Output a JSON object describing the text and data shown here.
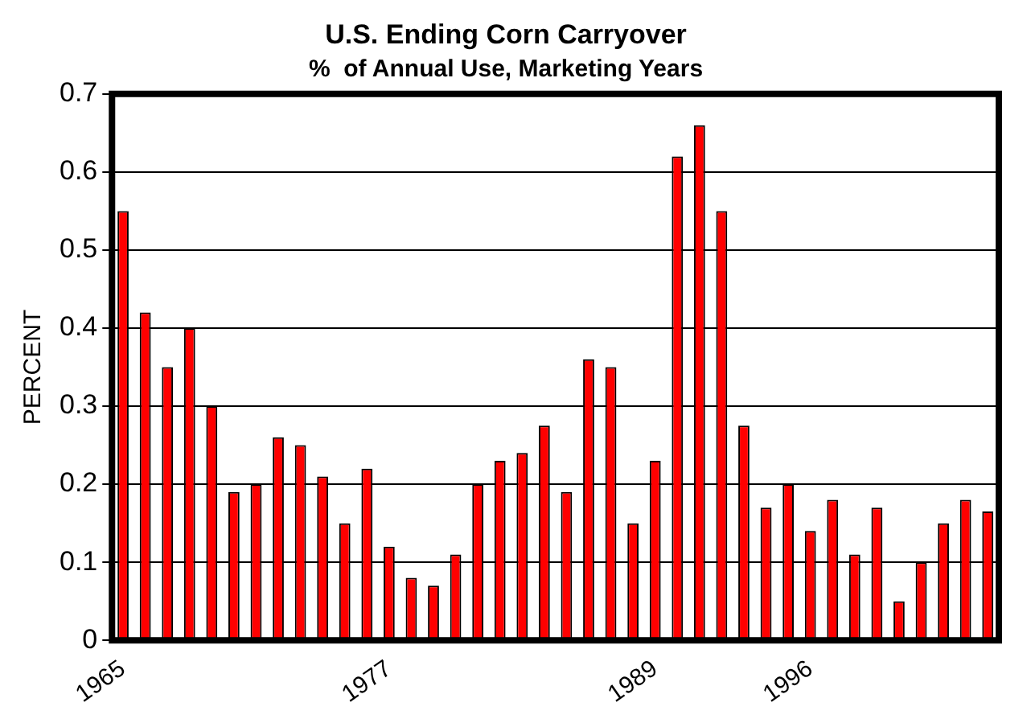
{
  "chart_data": {
    "type": "bar",
    "title": "U.S. Ending Corn Carryover",
    "subtitle": "%  of Annual Use, Marketing Years",
    "ylabel": "PERCENT",
    "categories": [
      "1965",
      null,
      null,
      null,
      null,
      null,
      null,
      null,
      null,
      null,
      null,
      null,
      "1977",
      null,
      null,
      null,
      null,
      null,
      null,
      null,
      null,
      null,
      null,
      null,
      "1989",
      null,
      null,
      null,
      null,
      null,
      null,
      "1996",
      null,
      null,
      null,
      null,
      null,
      null,
      null,
      null
    ],
    "values": [
      0.55,
      0.42,
      0.35,
      0.4,
      0.3,
      0.19,
      0.2,
      0.26,
      0.25,
      0.21,
      0.15,
      0.22,
      0.12,
      0.08,
      0.07,
      0.11,
      0.2,
      0.23,
      0.24,
      0.275,
      0.19,
      0.36,
      0.35,
      0.15,
      0.23,
      0.62,
      0.66,
      0.55,
      0.275,
      0.17,
      0.2,
      0.14,
      0.18,
      0.11,
      0.17,
      0.05,
      0.1,
      0.15,
      0.18,
      0.165
    ],
    "color": "#ff0000",
    "ylim": [
      0,
      0.7
    ],
    "yticks": [
      0,
      0.1,
      0.2,
      0.3,
      0.4,
      0.5,
      0.6,
      0.7
    ],
    "grid": "y",
    "legend": false
  }
}
